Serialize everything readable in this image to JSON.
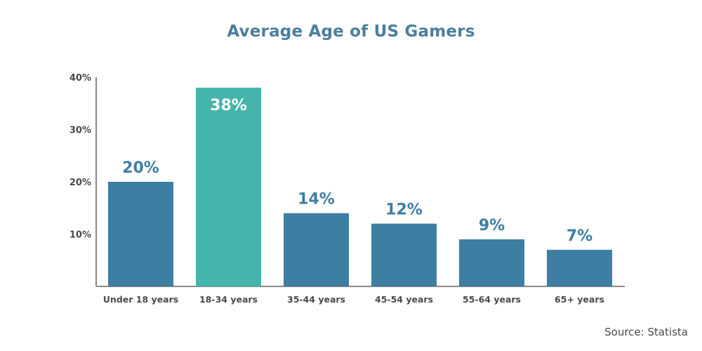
{
  "title": "Average Age of US Gamers",
  "source": "Source: Statista",
  "colors": {
    "title": "#4a7e9e",
    "bar": "#3d7ea3",
    "highlight": "#45b5ab",
    "axis": "#8a8a8a",
    "tick_text": "#4a4a4a",
    "label_dark": "#3d7ea3",
    "label_light": "#ffffff"
  },
  "chart_data": {
    "type": "bar",
    "title": "Average Age of US Gamers",
    "categories": [
      "Under 18 years",
      "18-34 years",
      "35-44 years",
      "45-54 years",
      "55-64 years",
      "65+ years"
    ],
    "values": [
      20,
      38,
      14,
      12,
      9,
      7
    ],
    "data_labels": [
      "20%",
      "38%",
      "14%",
      "12%",
      "9%",
      "7%"
    ],
    "highlight_index": 1,
    "yticks": [
      10,
      20,
      30,
      40
    ],
    "ytick_labels": [
      "10%",
      "20%",
      "30%",
      "40%"
    ],
    "ylim": [
      0,
      40
    ],
    "grid": false,
    "legend": "none",
    "xlabel": "",
    "ylabel": ""
  }
}
